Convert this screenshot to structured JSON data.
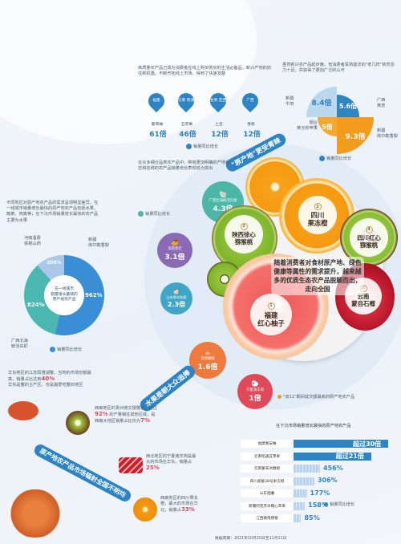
{
  "top_left": {
    "intro": "高质量农产品已成为消费者在线上购买购买的生活必备品，新兴产地的抓住新机遇，不断开拓线上市场，得到了快速发展",
    "pins": [
      {
        "region": "福建",
        "product": "葡萄柚",
        "multiple": "61倍"
      },
      {
        "region": "云南\n昭通",
        "product": "丑苹果",
        "multiple": "46倍"
      },
      {
        "region": "甘肃\n定西",
        "product": "土豆",
        "multiple": "12倍"
      },
      {
        "region": "广西",
        "product": "香蕉",
        "multiple": "12倍"
      }
    ],
    "legend": "销量同比增长"
  },
  "top_right": {
    "intro": "虽然新兴农产品起步晚，但消费者耳熟能详的\"老几样\"依然活力十足，并获得了更加广泛的认可",
    "items": [
      {
        "name": "新疆\n牛肉",
        "value": "8.4倍"
      },
      {
        "name": "广西\n黄皮",
        "value": "5.6倍"
      },
      {
        "name": "烟台\n黄元帅苹果",
        "value": "5倍"
      },
      {
        "name": "新疆\n库尔勒香梨",
        "value": "9.3倍"
      }
    ],
    "legend": "销量同比增长"
  },
  "banner_origin": "\"原产地\"更受青睐",
  "mid_left_intro": "在众多细分品类农产品中，带有更加明确的产地标志和名称的农产品销量增长表现较为突出",
  "mid_left_legend": "销量同比增长",
  "bubbles": [
    {
      "name": "广西北海鲜活贝类",
      "value": "4.3倍"
    },
    {
      "name": "海南金芒",
      "value": "3.1倍"
    },
    {
      "name": "山东青岛牡蛎",
      "value": "2.3倍"
    },
    {
      "name": "云南咖啡",
      "value": "1.6倍"
    },
    {
      "name": "宁夏滩羊肉",
      "value": "1倍"
    }
  ],
  "center_text": "随着消费者对食材原产地、绿色健康等属性的需求提升，越来越多的优质生态农产品脱颖而出，走向全国",
  "fruits": [
    {
      "no": "1",
      "name": "福建\n红心柚子"
    },
    {
      "no": "2",
      "name": "陕西徐心\n猕猴桃"
    },
    {
      "no": "3",
      "name": "四川\n果冻橙"
    },
    {
      "no": "4",
      "name": "四川红心\n猕猴桃"
    },
    {
      "no": "5",
      "name": "云南\n蒙自石榴"
    }
  ],
  "fruit_caption": "\"双11\"期间成交额最高的原产地农产品",
  "donut": {
    "intro": "不同地区对原产地农产品的需求呈现明显差异，在一线城市销量增长最快的原产地农产品包括水果、蔬菜、肉禽等；在下沉市场销量增长最快的农产品主要为水果",
    "center_label": "在一线城市\n销量增长最快的\n原产地农产品",
    "segments": [
      {
        "name": "新疆\n库尔勒香梨",
        "value": "962%",
        "color": "#3a8ed6"
      },
      {
        "name": "广西北海\n鲜活白虾",
        "value": "824%",
        "color": "#4ab8b0"
      },
      {
        "name": "河南温县\n铁棍山药",
        "value": "206%",
        "color": "#a9c7e8"
      }
    ],
    "legend": "销量同比增长"
  },
  "banner_water": "水果是朝大众追捧",
  "lower_left": {
    "text1": "华东地区的江苏阳澄湖蟹、当地的市场份额最高，销量占比达到",
    "text1_pct": "40%",
    "text1b": "华东是蟹的主产区，也是最爱吃蟹的地区",
    "text2": "西南地区的贵州修文猕猴桃，超过",
    "text2_pct": "92%",
    "text2b": "的产量销往其他区域，是西南大地区销量占比仅为",
    "text2_pct2": "7%",
    "text3": "西北地区的宁夏滩羊肉是最大的市场在华东，销量占",
    "text3_pct": "25%",
    "text4": "西南地区的四川果冻橙，最大的市场在华北，销量占",
    "text4_pct": "33%"
  },
  "banner_market": "原产地农产品市场辐射全国不明均",
  "bars": {
    "title": "在下沉市场销量增长最快的原产地农产品",
    "items": [
      {
        "name": "福建秦安柚",
        "value": "超过30倍",
        "frac": 1.0
      },
      {
        "name": "云南昭通丑苹果",
        "value": "超过21倍",
        "frac": 0.82
      },
      {
        "name": "云南蒙宋冰糖橙",
        "value": "456%",
        "frac": 0.28
      },
      {
        "name": "四川爱媛38号果冻橙",
        "value": "306%",
        "frac": 0.22
      },
      {
        "name": "山东烟薯",
        "value": "177%",
        "frac": 0.14
      },
      {
        "name": "新疆阿克苏冰糖心苹果",
        "value": "158%",
        "frac": 0.12
      },
      {
        "name": "江西赣南脐橙",
        "value": "85%",
        "frac": 0.08
      }
    ],
    "legend": "销量同比增长"
  },
  "source": "数据周期：2021年10月20日至11月11日"
}
